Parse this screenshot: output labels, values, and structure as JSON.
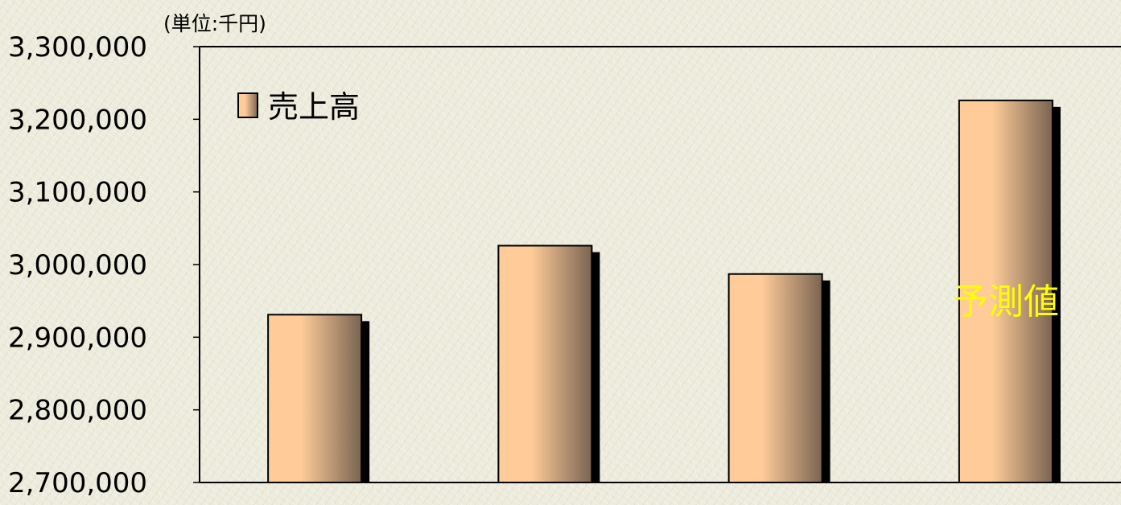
{
  "chart_data": {
    "type": "bar",
    "unit_label": "(単位:千円)",
    "categories": [
      "",
      "",
      "",
      ""
    ],
    "series": [
      {
        "name": "売上高",
        "values": [
          2931000,
          3026000,
          2987000,
          3226000
        ]
      }
    ],
    "ylim": [
      2700000,
      3300000
    ],
    "ytick_step": 100000,
    "ytick_labels": [
      "2,700,000",
      "2,800,000",
      "2,900,000",
      "3,000,000",
      "3,100,000",
      "3,200,000",
      "3,300,000"
    ],
    "annotation": {
      "text": "予測値",
      "category_index": 3,
      "color": "#ffff00"
    },
    "legend_position": "top-left",
    "grid": false,
    "colors": {
      "bar_highlight": "#ffcc99",
      "bar_shade": "#7a6452",
      "bar_outline": "#000000",
      "axis": "#000000"
    }
  }
}
